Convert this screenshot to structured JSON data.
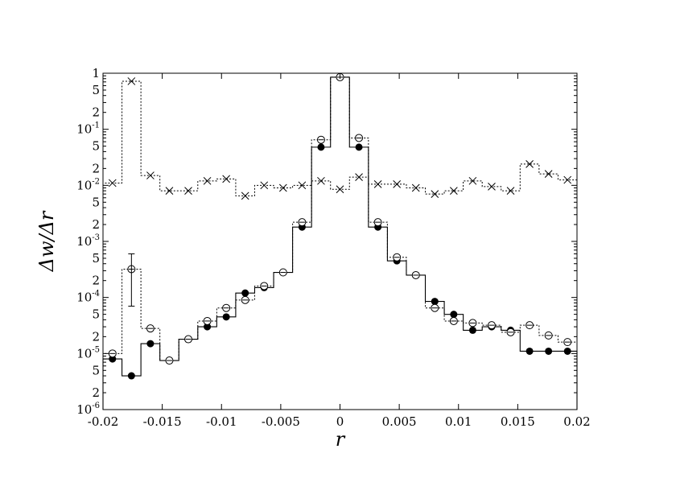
{
  "chart_data": {
    "type": "line",
    "xlabel": "r",
    "ylabel": "Δw/Δr",
    "xlim": [
      -0.02,
      0.02
    ],
    "ylim": [
      1e-06,
      1
    ],
    "yscale": "log",
    "grid": false,
    "legend": "none",
    "x_ticks": [
      "-0.02",
      "-0.015",
      "-0.01",
      "-0.005",
      "0",
      "0.005",
      "0.01",
      "0.015",
      "0.02"
    ],
    "y_decades": [
      {
        "base": "10",
        "exp": "-6"
      },
      {
        "base": "10",
        "exp": "-5"
      },
      {
        "base": "10",
        "exp": "-4"
      },
      {
        "base": "10",
        "exp": "-3"
      },
      {
        "base": "10",
        "exp": "-2"
      },
      {
        "base": "10",
        "exp": "-1"
      },
      {
        "base": "1",
        "exp": ""
      }
    ],
    "y_minor_labels": [
      "2",
      "5"
    ],
    "bin_edges": [
      -0.02,
      -0.0184,
      -0.0168,
      -0.0152,
      -0.0136,
      -0.012,
      -0.0104,
      -0.0088,
      -0.0072,
      -0.0056,
      -0.004,
      -0.0024,
      -0.0008,
      0.0008,
      0.0024,
      0.004,
      0.0056,
      0.0072,
      0.0088,
      0.0104,
      0.012,
      0.0136,
      0.0152,
      0.0168,
      0.0184,
      0.02
    ],
    "x": [
      -0.0192,
      -0.0176,
      -0.016,
      -0.0144,
      -0.0128,
      -0.0112,
      -0.0096,
      -0.008,
      -0.0064,
      -0.0048,
      -0.0032,
      -0.0016,
      0.0,
      0.0016,
      0.0032,
      0.0048,
      0.0064,
      0.008,
      0.0096,
      0.0112,
      0.0128,
      0.0144,
      0.016,
      0.0176,
      0.0192
    ],
    "series": [
      {
        "marker": "filled-circle",
        "line": "solid",
        "color": "#000000",
        "values": [
          8e-06,
          4e-06,
          1.5e-05,
          7.5e-06,
          1.8e-05,
          3e-05,
          4.5e-05,
          0.00012,
          0.00015,
          0.00028,
          0.0018,
          0.048,
          0.85,
          0.048,
          0.0018,
          0.00045,
          0.00025,
          8.5e-05,
          5e-05,
          2.6e-05,
          3e-05,
          2.6e-05,
          1.1e-05,
          1.1e-05,
          1.1e-05
        ]
      },
      {
        "marker": "open-circle",
        "line": "dotted",
        "color": "#000000",
        "values": [
          1e-05,
          0.00032,
          2.8e-05,
          7.5e-06,
          1.8e-05,
          3.8e-05,
          6.5e-05,
          9e-05,
          0.00016,
          0.00028,
          0.0022,
          0.065,
          0.85,
          0.07,
          0.0022,
          0.00052,
          0.00025,
          6.5e-05,
          3.8e-05,
          3.5e-05,
          3.2e-05,
          2.4e-05,
          3.2e-05,
          2.1e-05,
          1.6e-05
        ],
        "error_bars": [
          {
            "x": -0.0176,
            "low": 7e-05,
            "high": 0.0006
          }
        ]
      },
      {
        "marker": "cross",
        "line": "dotted",
        "color": "#000000",
        "values": [
          0.011,
          0.72,
          0.015,
          0.008,
          0.008,
          0.012,
          0.013,
          0.0065,
          0.01,
          0.009,
          0.01,
          0.012,
          0.0085,
          0.014,
          0.0105,
          0.0105,
          0.009,
          0.007,
          0.008,
          0.012,
          0.0095,
          0.008,
          0.024,
          0.016,
          0.0125
        ]
      }
    ]
  }
}
